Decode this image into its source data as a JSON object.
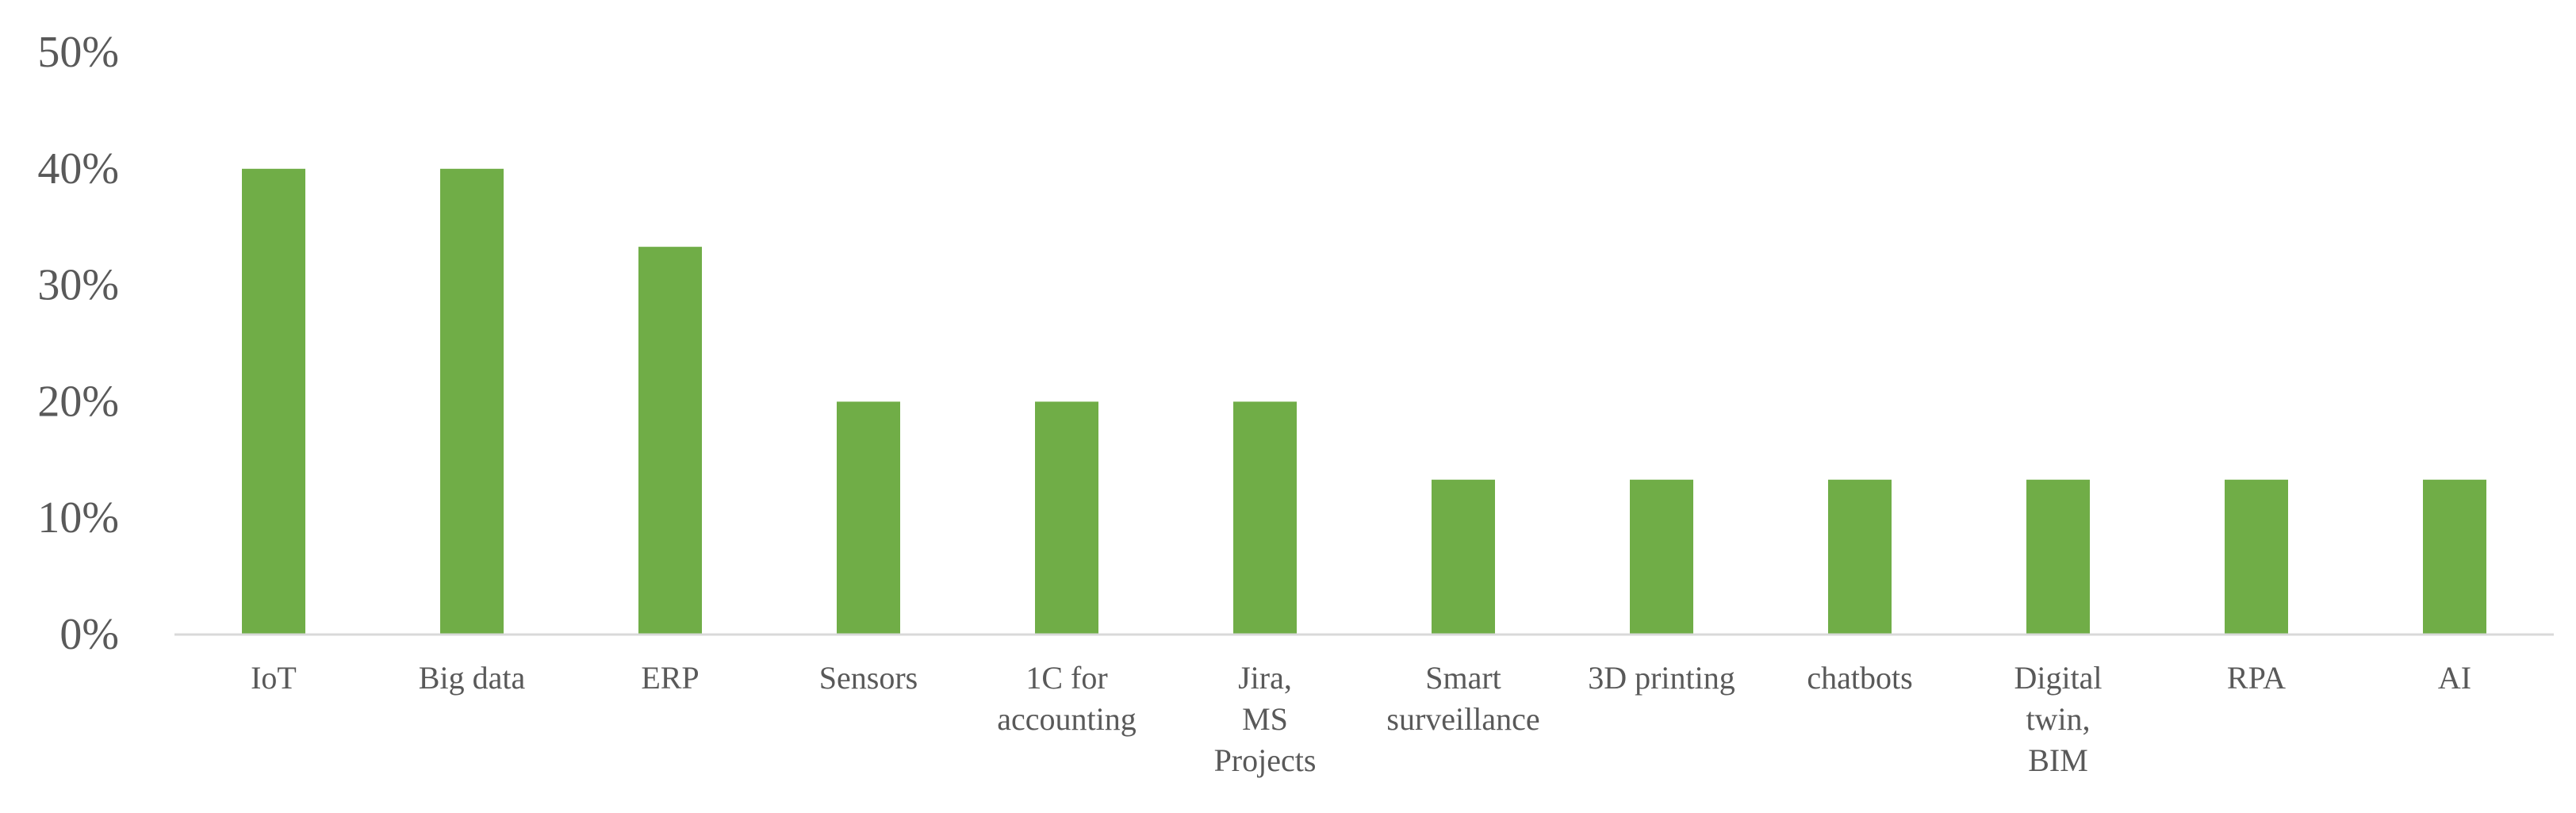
{
  "chart_data": {
    "type": "bar",
    "categories": [
      [
        "IoT"
      ],
      [
        "Big data"
      ],
      [
        "ERP"
      ],
      [
        "Sensors"
      ],
      [
        "1C for",
        "accounting"
      ],
      [
        "Jira,",
        "MS",
        "Projects"
      ],
      [
        "Smart",
        "surveillance"
      ],
      [
        "3D printing"
      ],
      [
        "chatbots"
      ],
      [
        "Digital",
        "twin,",
        "BIM"
      ],
      [
        "RPA"
      ],
      [
        "AI"
      ]
    ],
    "values": [
      40,
      40,
      33.3,
      20,
      20,
      20,
      13.3,
      13.3,
      13.3,
      13.3,
      13.3,
      13.3
    ],
    "ylim": [
      0,
      50
    ],
    "yticks": [
      0,
      10,
      20,
      30,
      40,
      50
    ],
    "ytick_labels": [
      "0%",
      "10%",
      "20%",
      "30%",
      "40%",
      "50%"
    ],
    "grid": false,
    "bar_color": "#70AD47",
    "axis_color": "#D9D9D9",
    "text_color": "#595959"
  }
}
